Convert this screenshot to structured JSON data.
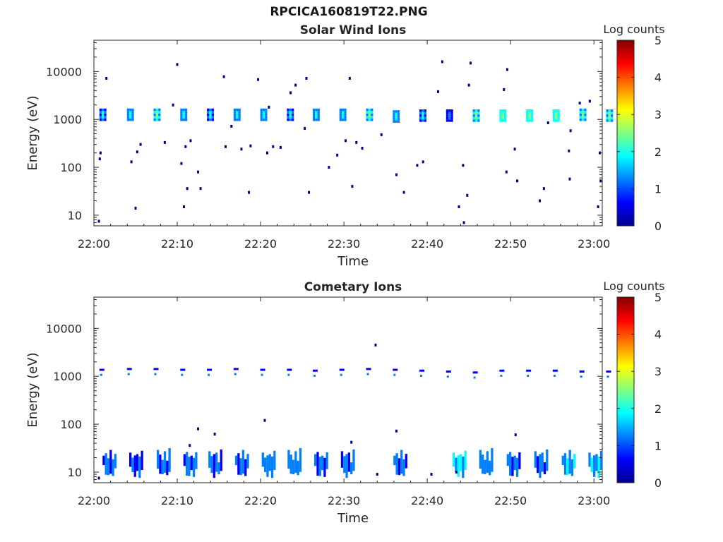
{
  "figure_title": "RPCICA160819T22.PNG",
  "colormap": [
    "#00008f",
    "#0000ff",
    "#0080ff",
    "#00ffff",
    "#80ff80",
    "#ffff00",
    "#ff8000",
    "#ff0000",
    "#800000"
  ],
  "chart_data": [
    {
      "type": "heatmap",
      "title": "Solar Wind Ions",
      "xlabel": "Time",
      "ylabel": "Energy (eV)",
      "colorbar_label": "Log counts",
      "colorbar_ticks": [
        "0",
        "1",
        "2",
        "3",
        "4",
        "5"
      ],
      "clim": [
        0,
        5
      ],
      "x_ticks": [
        "22:00",
        "22:10",
        "22:20",
        "22:30",
        "22:40",
        "22:50",
        "23:00"
      ],
      "xlim_minutes_after_2200": [
        0,
        61
      ],
      "y_ticks": [
        "10",
        "100",
        "1000",
        "10000"
      ],
      "y_scale": "log",
      "ylim": [
        6,
        45000
      ],
      "bursts": [
        {
          "t": 1.0,
          "e_center": 1250,
          "v": 1.8
        },
        {
          "t": 4.3,
          "e_center": 1250,
          "v": 2.0
        },
        {
          "t": 7.5,
          "e_center": 1250,
          "v": 2.2
        },
        {
          "t": 10.7,
          "e_center": 1250,
          "v": 1.9
        },
        {
          "t": 13.9,
          "e_center": 1250,
          "v": 1.7
        },
        {
          "t": 17.1,
          "e_center": 1250,
          "v": 2.0
        },
        {
          "t": 20.3,
          "e_center": 1250,
          "v": 2.1
        },
        {
          "t": 23.5,
          "e_center": 1250,
          "v": 1.8
        },
        {
          "t": 26.6,
          "e_center": 1250,
          "v": 2.0
        },
        {
          "t": 29.8,
          "e_center": 1250,
          "v": 1.9
        },
        {
          "t": 33.0,
          "e_center": 1250,
          "v": 2.2
        },
        {
          "t": 36.2,
          "e_center": 1150,
          "v": 2.0
        },
        {
          "t": 39.4,
          "e_center": 1200,
          "v": 1.8
        },
        {
          "t": 42.6,
          "e_center": 1200,
          "v": 1.5
        },
        {
          "t": 45.8,
          "e_center": 1200,
          "v": 2.4
        },
        {
          "t": 49.0,
          "e_center": 1200,
          "v": 2.5
        },
        {
          "t": 52.2,
          "e_center": 1200,
          "v": 2.6
        },
        {
          "t": 55.4,
          "e_center": 1200,
          "v": 2.6
        },
        {
          "t": 58.6,
          "e_center": 1250,
          "v": 2.4
        },
        {
          "t": 61.8,
          "e_center": 1200,
          "v": 2.3
        }
      ],
      "scattered": [
        {
          "t": 0.6,
          "e": 7.5,
          "v": 0.3
        },
        {
          "t": 0.7,
          "e": 150,
          "v": 0.3
        },
        {
          "t": 0.8,
          "e": 200,
          "v": 0.3
        },
        {
          "t": 1.5,
          "e": 7200,
          "v": 0.3
        },
        {
          "t": 4.5,
          "e": 130,
          "v": 0.3
        },
        {
          "t": 5.0,
          "e": 14,
          "v": 0.3
        },
        {
          "t": 5.2,
          "e": 210,
          "v": 0.3
        },
        {
          "t": 5.6,
          "e": 300,
          "v": 0.3
        },
        {
          "t": 8.5,
          "e": 330,
          "v": 0.3
        },
        {
          "t": 9.5,
          "e": 2000,
          "v": 0.3
        },
        {
          "t": 10.0,
          "e": 14000,
          "v": 0.3
        },
        {
          "t": 10.5,
          "e": 120,
          "v": 0.3
        },
        {
          "t": 10.8,
          "e": 15,
          "v": 0.3
        },
        {
          "t": 11.0,
          "e": 270,
          "v": 0.3
        },
        {
          "t": 11.2,
          "e": 36,
          "v": 0.3
        },
        {
          "t": 11.6,
          "e": 360,
          "v": 0.3
        },
        {
          "t": 12.5,
          "e": 80,
          "v": 0.3
        },
        {
          "t": 12.8,
          "e": 36,
          "v": 0.3
        },
        {
          "t": 15.6,
          "e": 7800,
          "v": 0.3
        },
        {
          "t": 15.8,
          "e": 270,
          "v": 0.3
        },
        {
          "t": 16.5,
          "e": 720,
          "v": 0.3
        },
        {
          "t": 17.7,
          "e": 240,
          "v": 0.3
        },
        {
          "t": 18.6,
          "e": 30,
          "v": 0.3
        },
        {
          "t": 18.8,
          "e": 280,
          "v": 0.3
        },
        {
          "t": 19.7,
          "e": 6800,
          "v": 0.3
        },
        {
          "t": 20.8,
          "e": 200,
          "v": 0.3
        },
        {
          "t": 21.0,
          "e": 1800,
          "v": 0.3
        },
        {
          "t": 21.5,
          "e": 270,
          "v": 0.3
        },
        {
          "t": 22.4,
          "e": 260,
          "v": 0.3
        },
        {
          "t": 23.6,
          "e": 3600,
          "v": 0.3
        },
        {
          "t": 24.2,
          "e": 5200,
          "v": 0.3
        },
        {
          "t": 25.3,
          "e": 650,
          "v": 0.3
        },
        {
          "t": 25.5,
          "e": 7200,
          "v": 0.3
        },
        {
          "t": 25.8,
          "e": 30,
          "v": 0.3
        },
        {
          "t": 28.2,
          "e": 100,
          "v": 0.3
        },
        {
          "t": 29.2,
          "e": 180,
          "v": 0.3
        },
        {
          "t": 30.2,
          "e": 360,
          "v": 0.3
        },
        {
          "t": 30.7,
          "e": 7200,
          "v": 0.3
        },
        {
          "t": 31.0,
          "e": 40,
          "v": 0.3
        },
        {
          "t": 31.5,
          "e": 330,
          "v": 0.3
        },
        {
          "t": 32.2,
          "e": 250,
          "v": 0.3
        },
        {
          "t": 34.5,
          "e": 480,
          "v": 0.3
        },
        {
          "t": 36.3,
          "e": 70,
          "v": 0.3
        },
        {
          "t": 37.2,
          "e": 30,
          "v": 0.3
        },
        {
          "t": 38.8,
          "e": 110,
          "v": 0.3
        },
        {
          "t": 39.5,
          "e": 130,
          "v": 0.3
        },
        {
          "t": 41.3,
          "e": 3800,
          "v": 0.3
        },
        {
          "t": 41.8,
          "e": 16000,
          "v": 0.3
        },
        {
          "t": 43.8,
          "e": 15,
          "v": 0.3
        },
        {
          "t": 44.3,
          "e": 110,
          "v": 0.3
        },
        {
          "t": 44.4,
          "e": 7,
          "v": 0.3
        },
        {
          "t": 44.8,
          "e": 26,
          "v": 0.3
        },
        {
          "t": 45.0,
          "e": 5200,
          "v": 0.3
        },
        {
          "t": 45.2,
          "e": 15000,
          "v": 0.3
        },
        {
          "t": 49.2,
          "e": 4200,
          "v": 0.3
        },
        {
          "t": 49.5,
          "e": 80,
          "v": 0.3
        },
        {
          "t": 49.6,
          "e": 11000,
          "v": 0.3
        },
        {
          "t": 50.5,
          "e": 240,
          "v": 0.3
        },
        {
          "t": 50.8,
          "e": 52,
          "v": 0.3
        },
        {
          "t": 53.5,
          "e": 20,
          "v": 0.3
        },
        {
          "t": 54.0,
          "e": 36,
          "v": 0.3
        },
        {
          "t": 54.5,
          "e": 850,
          "v": 0.3
        },
        {
          "t": 57.0,
          "e": 220,
          "v": 0.3
        },
        {
          "t": 57.1,
          "e": 57,
          "v": 0.3
        },
        {
          "t": 57.2,
          "e": 580,
          "v": 0.3
        },
        {
          "t": 58.3,
          "e": 2200,
          "v": 0.3
        },
        {
          "t": 59.5,
          "e": 2400,
          "v": 0.3
        },
        {
          "t": 60.5,
          "e": 15,
          "v": 0.3
        },
        {
          "t": 60.7,
          "e": 200,
          "v": 0.3
        },
        {
          "t": 60.8,
          "e": 52,
          "v": 0.3
        }
      ]
    },
    {
      "type": "heatmap",
      "title": "Cometary Ions",
      "xlabel": "Time",
      "ylabel": "Energy (eV)",
      "colorbar_label": "Log counts",
      "colorbar_ticks": [
        "0",
        "1",
        "2",
        "3",
        "4",
        "5"
      ],
      "clim": [
        0,
        5
      ],
      "x_ticks": [
        "22:00",
        "22:10",
        "22:20",
        "22:30",
        "22:40",
        "22:50",
        "23:00"
      ],
      "xlim_minutes_after_2200": [
        0,
        61
      ],
      "y_ticks": [
        "10",
        "100",
        "1000",
        "10000"
      ],
      "y_scale": "log",
      "ylim": [
        6,
        45000
      ],
      "bursts_high": [
        {
          "t": 1.0,
          "e": 1250,
          "v": 0.9
        },
        {
          "t": 4.3,
          "e": 1300,
          "v": 0.9
        },
        {
          "t": 7.5,
          "e": 1300,
          "v": 0.9
        },
        {
          "t": 10.7,
          "e": 1250,
          "v": 0.9
        },
        {
          "t": 13.9,
          "e": 1250,
          "v": 0.9
        },
        {
          "t": 17.1,
          "e": 1300,
          "v": 0.9
        },
        {
          "t": 20.3,
          "e": 1250,
          "v": 0.9
        },
        {
          "t": 23.5,
          "e": 1250,
          "v": 0.9
        },
        {
          "t": 26.6,
          "e": 1200,
          "v": 0.9
        },
        {
          "t": 29.8,
          "e": 1250,
          "v": 0.9
        },
        {
          "t": 33.0,
          "e": 1300,
          "v": 0.9
        },
        {
          "t": 36.2,
          "e": 1250,
          "v": 0.9
        },
        {
          "t": 39.4,
          "e": 1200,
          "v": 0.9
        },
        {
          "t": 42.6,
          "e": 1150,
          "v": 0.9
        },
        {
          "t": 45.8,
          "e": 1100,
          "v": 0.9
        },
        {
          "t": 49.0,
          "e": 1200,
          "v": 0.9
        },
        {
          "t": 52.2,
          "e": 1200,
          "v": 0.9
        },
        {
          "t": 55.4,
          "e": 1200,
          "v": 0.9
        },
        {
          "t": 58.6,
          "e": 1150,
          "v": 0.9
        },
        {
          "t": 61.8,
          "e": 1150,
          "v": 0.9
        }
      ],
      "bursts_low": [
        {
          "t": 1.8,
          "v": 1.0
        },
        {
          "t": 5.0,
          "v": 0.8
        },
        {
          "t": 8.3,
          "v": 1.0
        },
        {
          "t": 11.5,
          "v": 1.0
        },
        {
          "t": 14.5,
          "v": 1.1
        },
        {
          "t": 17.7,
          "v": 1.0
        },
        {
          "t": 20.9,
          "v": 1.2
        },
        {
          "t": 24.0,
          "v": 1.2
        },
        {
          "t": 27.2,
          "v": 1.1
        },
        {
          "t": 30.4,
          "v": 1.0
        },
        {
          "t": 36.7,
          "v": 0.9
        },
        {
          "t": 43.8,
          "v": 1.7
        },
        {
          "t": 47.0,
          "v": 1.2
        },
        {
          "t": 50.3,
          "v": 1.1
        },
        {
          "t": 53.6,
          "v": 1.1
        },
        {
          "t": 56.9,
          "v": 1.4
        },
        {
          "t": 60.1,
          "v": 1.3
        }
      ],
      "scattered": [
        {
          "t": 0.6,
          "e": 7.5,
          "v": 0.3
        },
        {
          "t": 11.5,
          "e": 36,
          "v": 0.3
        },
        {
          "t": 12.5,
          "e": 80,
          "v": 0.3
        },
        {
          "t": 14.5,
          "e": 62,
          "v": 0.3
        },
        {
          "t": 20.5,
          "e": 120,
          "v": 0.3
        },
        {
          "t": 30.9,
          "e": 42,
          "v": 0.3
        },
        {
          "t": 33.8,
          "e": 4500,
          "v": 0.3
        },
        {
          "t": 36.3,
          "e": 72,
          "v": 0.3
        },
        {
          "t": 50.6,
          "e": 60,
          "v": 0.3
        },
        {
          "t": 43.5,
          "e": 10,
          "v": 0.3
        },
        {
          "t": 34.0,
          "e": 9,
          "v": 0.3
        },
        {
          "t": 40.5,
          "e": 9,
          "v": 0.3
        }
      ]
    }
  ]
}
